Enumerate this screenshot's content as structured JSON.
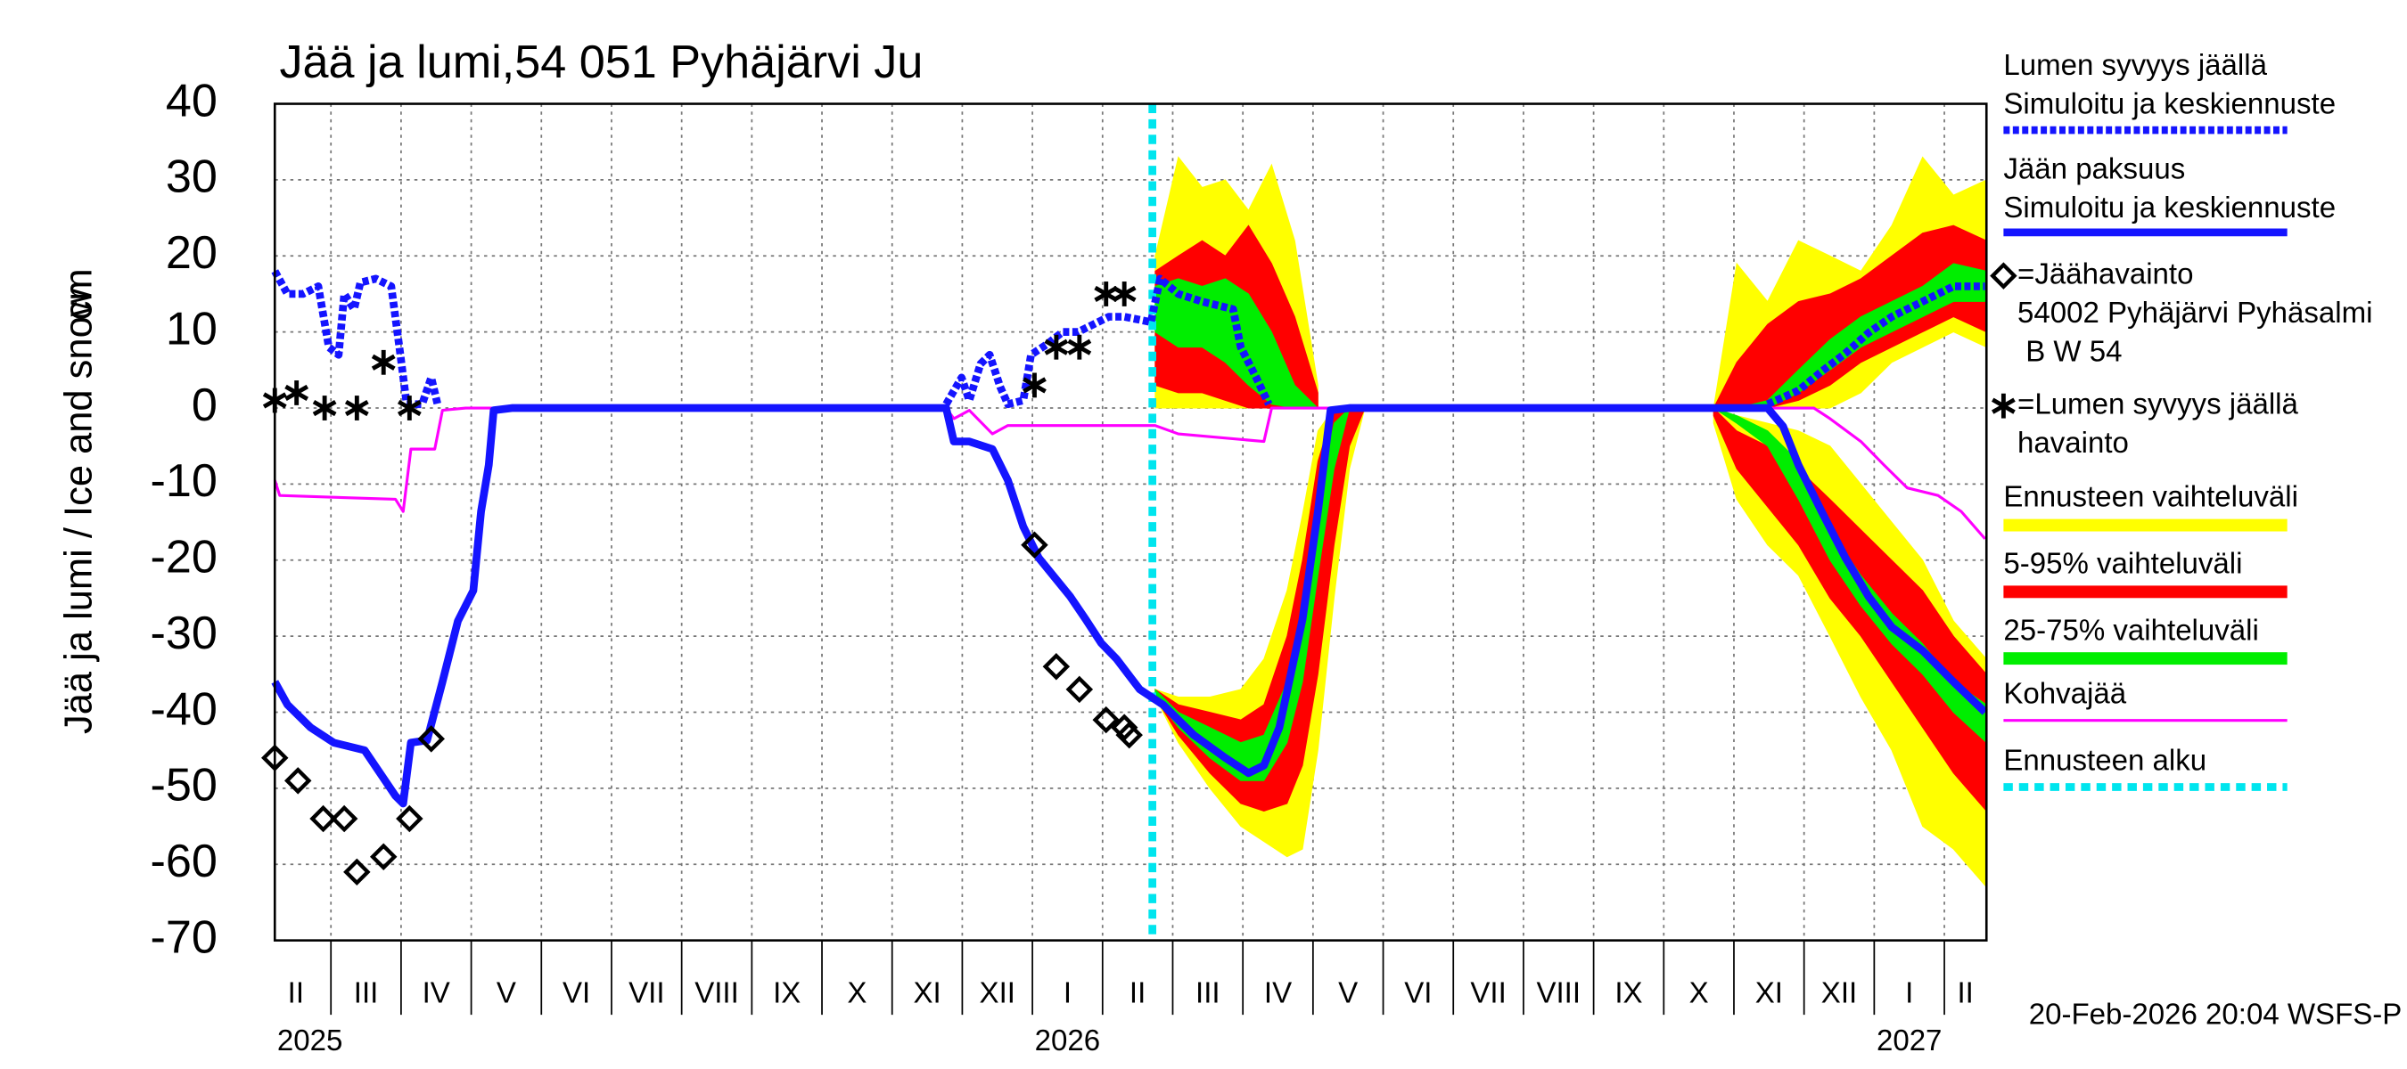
{
  "chart_data": {
    "type": "line",
    "title": "Jää ja lumi,54 051 Pyhäjärvi Ju",
    "y_label": "Jää ja lumi / Ice and snow",
    "y_unit": "cm",
    "footer": "20-Feb-2026 20:04 WSFS-P",
    "xlim": [
      1.2,
      25.6
    ],
    "ylim": [
      -70,
      40
    ],
    "yticks": [
      -70,
      -60,
      -50,
      -40,
      -30,
      -20,
      -10,
      0,
      10,
      20,
      30,
      40
    ],
    "grid": true,
    "xticks": [
      {
        "value": 1,
        "label": "II"
      },
      {
        "value": 2,
        "label": "III"
      },
      {
        "value": 3,
        "label": "IV"
      },
      {
        "value": 4,
        "label": "V"
      },
      {
        "value": 5,
        "label": "VI"
      },
      {
        "value": 6,
        "label": "VII"
      },
      {
        "value": 7,
        "label": "VIII"
      },
      {
        "value": 8,
        "label": "IX"
      },
      {
        "value": 9,
        "label": "X"
      },
      {
        "value": 10,
        "label": "XI"
      },
      {
        "value": 11,
        "label": "XII"
      },
      {
        "value": 12,
        "label": "I"
      },
      {
        "value": 13,
        "label": "II"
      },
      {
        "value": 14,
        "label": "III"
      },
      {
        "value": 15,
        "label": "IV"
      },
      {
        "value": 16,
        "label": "V"
      },
      {
        "value": 17,
        "label": "VI"
      },
      {
        "value": 18,
        "label": "VII"
      },
      {
        "value": 19,
        "label": "VIII"
      },
      {
        "value": 20,
        "label": "IX"
      },
      {
        "value": 21,
        "label": "X"
      },
      {
        "value": 22,
        "label": "XI"
      },
      {
        "value": 23,
        "label": "XII"
      },
      {
        "value": 24,
        "label": "I"
      },
      {
        "value": 25,
        "label": "II"
      }
    ],
    "year_ticks": [
      {
        "value": 0,
        "label": "2025"
      },
      {
        "value": 12,
        "label": "2026"
      },
      {
        "value": 24,
        "label": "2027"
      }
    ],
    "forecast_start": {
      "name": "Ennusteen alku",
      "value": 13.71,
      "color": "#00e5ee"
    },
    "series": [
      {
        "name": "Lumen syvyys jäällä\nSimuloitu ja keskiennuste",
        "color": "#1414ff",
        "style": "dashed",
        "x": [
          1.2,
          1.38,
          1.6,
          1.82,
          1.97,
          2.11,
          2.19,
          2.33,
          2.42,
          2.64,
          2.86,
          2.99,
          3.08,
          3.3,
          3.43,
          3.52,
          3.6,
          10.77,
          10.99,
          11.1,
          11.26,
          11.39,
          11.54,
          11.65,
          11.87,
          11.98,
          12.21,
          12.43,
          12.65,
          12.87,
          13.09,
          13.31,
          13.69,
          13.82,
          14.08,
          14.42,
          14.86,
          14.97,
          15.19,
          15.37,
          15.5,
          22.48,
          22.92,
          23.25,
          23.59,
          23.92,
          24.25,
          24.69,
          25.13,
          25.58
        ],
        "values": [
          18,
          15,
          15,
          16,
          8,
          7,
          15,
          13,
          16.5,
          17,
          16,
          7,
          0.5,
          0.5,
          4,
          0.5,
          null,
          0.5,
          4,
          1,
          5.8,
          7,
          2.8,
          0.5,
          1,
          7,
          8.4,
          10,
          10,
          11,
          12,
          12,
          11.3,
          17,
          15,
          14,
          13,
          8,
          4,
          0.5,
          null,
          0.5,
          2.3,
          4.8,
          7.2,
          9.9,
          12,
          14,
          16,
          16
        ]
      },
      {
        "name": "Jään paksuus\nSimuloitu ja keskiennuste",
        "color": "#1414ff",
        "style": "solid",
        "x": [
          1.2,
          1.38,
          1.71,
          2.04,
          2.48,
          2.7,
          2.92,
          3.03,
          3.14,
          3.37,
          3.59,
          3.81,
          4.03,
          4.14,
          4.25,
          4.32,
          4.58,
          10.77,
          10.88,
          11.1,
          11.43,
          11.65,
          11.87,
          12.09,
          12.54,
          12.76,
          12.98,
          13.2,
          13.53,
          13.86,
          14.3,
          14.75,
          15.08,
          15.3,
          15.52,
          15.85,
          16.07,
          16.25,
          16.52,
          22.48,
          22.7,
          22.92,
          23.25,
          23.59,
          23.92,
          24.25,
          24.69,
          25.13,
          25.58
        ],
        "values": [
          -36,
          -39,
          -42,
          -44,
          -45,
          -48,
          -51,
          -52,
          -44,
          -43.7,
          -36,
          -28,
          -24,
          -13.6,
          -7.5,
          -0.3,
          0,
          0,
          -4.4,
          -4.4,
          -5.4,
          -9.5,
          -15.6,
          -19.7,
          -24.8,
          -27.8,
          -30.9,
          -33,
          -37,
          -39,
          -43,
          -46,
          -48,
          -47,
          -42,
          -27.8,
          -13.6,
          -0.3,
          0,
          0,
          -2.4,
          -7.5,
          -13.6,
          -19.7,
          -24.8,
          -28.8,
          -31.9,
          -36,
          -40
        ]
      },
      {
        "name": "Kohvajää",
        "color": "#ff00ff",
        "style": "thin",
        "x": [
          1.2,
          1.27,
          2.92,
          3.03,
          3.14,
          3.48,
          3.59,
          3.92,
          10.77,
          10.88,
          11.1,
          11.43,
          11.65,
          13.75,
          14.08,
          15.3,
          15.41,
          23.14,
          23.37,
          23.81,
          24.14,
          24.47,
          24.91,
          25.24,
          25.58
        ],
        "values": [
          -9.5,
          -11.5,
          -12,
          -13.6,
          -5.4,
          -5.4,
          -0.3,
          0,
          0,
          -1.4,
          -0.3,
          -3.4,
          -2.3,
          -2.3,
          -3.4,
          -4.4,
          0,
          0,
          -1.4,
          -4.4,
          -7.5,
          -10.5,
          -11.5,
          -13.6,
          -17.2
        ]
      }
    ],
    "bands": [
      {
        "name": "Ennusteen vaihteluväli",
        "color": "#ffff00",
        "areas": [
          {
            "x": [
              13.75,
              14.08,
              14.42,
              14.75,
              15.08,
              15.41,
              15.74,
              16.07
            ],
            "low": [
              0,
              0,
              0,
              0,
              0,
              0,
              0,
              0
            ],
            "high": [
              20,
              33,
              29,
              30,
              26,
              32,
              22,
              3
            ]
          },
          {
            "x": [
              13.75,
              14.08,
              14.53,
              14.97,
              15.3,
              15.63,
              15.85,
              16.07,
              16.3,
              16.52,
              16.74
            ],
            "low": [
              -38,
              -44,
              -50,
              -55,
              -57,
              -59,
              -58,
              -45,
              -25,
              -8,
              0
            ],
            "high": [
              -37,
              -38,
              -38,
              -37,
              -33,
              -24,
              -14,
              -3,
              0,
              0,
              0
            ]
          },
          {
            "x": [
              21.71,
              22.04,
              22.48,
              22.92,
              23.37,
              23.81,
              24.25,
              24.69,
              25.13,
              25.6
            ],
            "low": [
              0,
              0,
              0,
              0,
              0,
              2,
              6,
              8,
              10,
              8
            ],
            "high": [
              0,
              19,
              14,
              22,
              20,
              18,
              24,
              33,
              28,
              30
            ]
          },
          {
            "x": [
              21.71,
              22.04,
              22.48,
              22.92,
              23.37,
              23.81,
              24.25,
              24.69,
              25.13,
              25.6
            ],
            "low": [
              -2,
              -12,
              -18,
              -22,
              -30,
              -38,
              -45,
              -55,
              -58,
              -63
            ],
            "high": [
              0,
              -1,
              -2,
              -3,
              -5,
              -10,
              -15,
              -20,
              -28,
              -33
            ]
          }
        ]
      },
      {
        "name": "5-95% vaihteluväli",
        "color": "#ff0000",
        "areas": [
          {
            "x": [
              13.75,
              14.08,
              14.42,
              14.75,
              15.08,
              15.41,
              15.74,
              16.07
            ],
            "low": [
              3,
              2,
              2,
              1,
              0,
              0,
              0,
              0
            ],
            "high": [
              18,
              20,
              22,
              20,
              24,
              19,
              12,
              2
            ]
          },
          {
            "x": [
              13.75,
              14.08,
              14.53,
              14.97,
              15.3,
              15.63,
              15.85,
              16.07,
              16.3,
              16.52,
              16.74
            ],
            "low": [
              -38,
              -43,
              -48,
              -52,
              -53,
              -52,
              -47,
              -35,
              -18,
              -5,
              0
            ],
            "high": [
              -37,
              -39,
              -40,
              -41,
              -39,
              -30,
              -20,
              -7,
              0,
              0,
              0
            ]
          },
          {
            "x": [
              21.71,
              22.04,
              22.48,
              22.92,
              23.37,
              23.81,
              24.25,
              24.69,
              25.13,
              25.6
            ],
            "low": [
              0,
              0,
              0,
              1,
              3,
              6,
              8,
              10,
              12,
              10
            ],
            "high": [
              0,
              6,
              11,
              14,
              15,
              17,
              20,
              23,
              24,
              22
            ]
          },
          {
            "x": [
              21.71,
              22.04,
              22.48,
              22.92,
              23.37,
              23.81,
              24.25,
              24.69,
              25.13,
              25.6
            ],
            "low": [
              -1,
              -8,
              -13,
              -18,
              -25,
              -30,
              -36,
              -42,
              -48,
              -53
            ],
            "high": [
              0,
              -3,
              -5,
              -8,
              -12,
              -16,
              -20,
              -24,
              -30,
              -35
            ]
          }
        ]
      },
      {
        "name": "25-75% vaihteluväli",
        "color": "#00ee00",
        "areas": [
          {
            "x": [
              13.75,
              14.08,
              14.42,
              14.75,
              15.08,
              15.41,
              15.74,
              16.07
            ],
            "low": [
              10,
              8,
              8,
              6,
              3,
              0.5,
              0,
              0
            ],
            "high": [
              16,
              17,
              16,
              17,
              15,
              10,
              3,
              0
            ]
          },
          {
            "x": [
              13.75,
              14.08,
              14.53,
              14.97,
              15.3,
              15.63,
              15.85,
              16.07,
              16.3,
              16.52,
              16.74
            ],
            "low": [
              -38,
              -42,
              -46,
              -49,
              -49,
              -44,
              -36,
              -22,
              -8,
              0,
              0
            ],
            "high": [
              -37,
              -40,
              -42,
              -44,
              -43,
              -36,
              -26,
              -12,
              -2,
              0,
              0
            ]
          },
          {
            "x": [
              21.71,
              22.04,
              22.48,
              22.92,
              23.37,
              23.81,
              24.25,
              24.69,
              25.13,
              25.6
            ],
            "low": [
              0,
              0,
              0,
              2,
              5,
              8,
              10,
              12,
              14,
              14
            ],
            "high": [
              0,
              0,
              1,
              5,
              9,
              12,
              14,
              16,
              19,
              18
            ]
          },
          {
            "x": [
              21.71,
              22.04,
              22.48,
              22.92,
              23.37,
              23.81,
              24.25,
              24.69,
              25.13,
              25.6
            ],
            "low": [
              0,
              -2,
              -5,
              -12,
              -20,
              -26,
              -31,
              -35,
              -40,
              -44
            ],
            "high": [
              0,
              -1,
              -3,
              -7,
              -16,
              -22,
              -27,
              -31,
              -36,
              -39
            ]
          }
        ]
      }
    ],
    "observations": [
      {
        "name": "=Jäähavainto\n54002 Pyhäjärvi Pyhäsalmi\n B W 54",
        "marker": "diamond",
        "color": "#000000",
        "x": [
          1.2,
          1.53,
          1.89,
          2.19,
          2.37,
          2.75,
          3.12,
          3.43,
          12.03,
          12.34,
          12.67,
          13.05,
          13.31,
          13.38
        ],
        "values": [
          -46,
          -49,
          -54,
          -54,
          -61,
          -59,
          -54,
          -43.5,
          -18,
          -34,
          -37,
          -41,
          -42,
          -43
        ]
      },
      {
        "name": "=Lumen syvyys jäällä\nhavainto",
        "marker": "star",
        "color": "#000000",
        "x": [
          1.2,
          1.51,
          1.91,
          2.37,
          2.75,
          3.12,
          12.03,
          12.34,
          12.67,
          13.05,
          13.31
        ],
        "values": [
          1,
          2,
          0,
          0,
          6,
          0,
          3,
          8,
          8,
          15,
          15
        ]
      }
    ]
  }
}
